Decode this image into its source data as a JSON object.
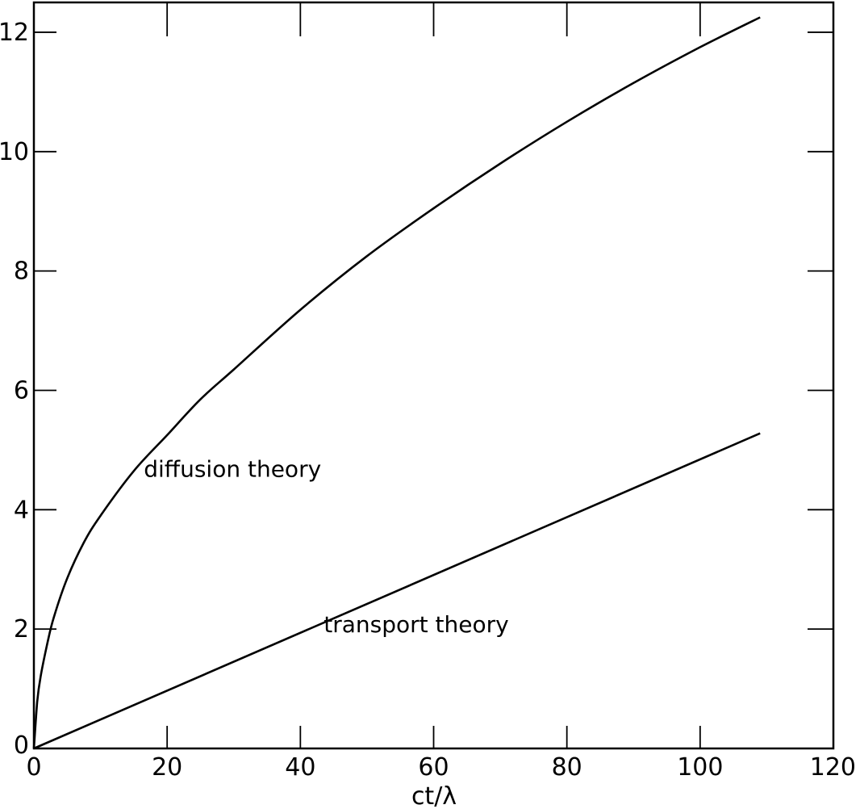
{
  "chart_data": {
    "type": "line",
    "title": "",
    "xlabel": "ct/λ",
    "ylabel": "",
    "xlim": [
      0,
      120
    ],
    "ylim": [
      0,
      12.5
    ],
    "xticks": [
      0,
      20,
      40,
      60,
      80,
      100,
      120
    ],
    "yticks": [
      0,
      2,
      4,
      6,
      8,
      10,
      12
    ],
    "grid": false,
    "series": [
      {
        "label": "diffusion theory",
        "x": [
          0,
          0.5,
          1,
          2,
          3,
          5,
          7.5,
          10,
          15,
          20,
          25,
          30,
          40,
          50,
          60,
          70,
          80,
          90,
          100,
          109
        ],
        "y": [
          0,
          0.78,
          1.2,
          1.75,
          2.2,
          2.85,
          3.45,
          3.9,
          4.65,
          5.25,
          5.85,
          6.35,
          7.35,
          8.25,
          9.05,
          9.8,
          10.5,
          11.15,
          11.75,
          12.25
        ]
      },
      {
        "label": "transport theory",
        "x": [
          0,
          109
        ],
        "y": [
          0,
          5.28
        ]
      }
    ],
    "annotations": [
      {
        "text": "diffusion theory",
        "x": 16.5,
        "y": 4.55
      },
      {
        "text": "transport theory",
        "x": 43.5,
        "y": 1.95
      }
    ]
  }
}
